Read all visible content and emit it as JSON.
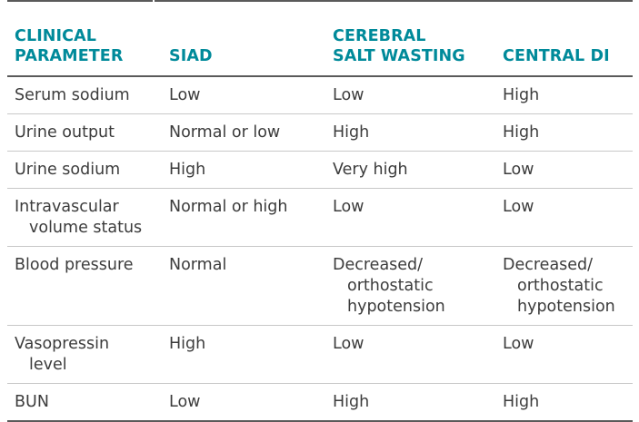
{
  "table": {
    "headers": [
      [
        "CLINICAL",
        "PARAMETER"
      ],
      [
        "SIAD"
      ],
      [
        "CEREBRAL",
        "SALT WASTING"
      ],
      [
        "CENTRAL DI"
      ]
    ],
    "rows": [
      {
        "parameter": [
          "Serum sodium"
        ],
        "siad": [
          "Low"
        ],
        "csw": [
          "Low"
        ],
        "di": [
          "High"
        ]
      },
      {
        "parameter": [
          "Urine output"
        ],
        "siad": [
          "Normal or low"
        ],
        "csw": [
          "High"
        ],
        "di": [
          "High"
        ]
      },
      {
        "parameter": [
          "Urine sodium"
        ],
        "siad": [
          "High"
        ],
        "csw": [
          "Very high"
        ],
        "di": [
          "Low"
        ]
      },
      {
        "parameter": [
          "Intravascular",
          "volume status"
        ],
        "siad": [
          "Normal or high"
        ],
        "csw": [
          "Low"
        ],
        "di": [
          "Low"
        ]
      },
      {
        "parameter": [
          "Blood pressure"
        ],
        "siad": [
          "Normal"
        ],
        "csw": [
          "Decreased/",
          "orthostatic",
          "hypotension"
        ],
        "di": [
          "Decreased/",
          "orthostatic",
          "hypotension"
        ]
      },
      {
        "parameter": [
          "Vasopressin",
          "level"
        ],
        "siad": [
          "High"
        ],
        "csw": [
          "Low"
        ],
        "di": [
          "Low"
        ]
      },
      {
        "parameter": [
          "BUN"
        ],
        "siad": [
          "Low"
        ],
        "csw": [
          "High"
        ],
        "di": [
          "High"
        ]
      }
    ]
  },
  "colors": {
    "header_text": "#008a9a",
    "body_text": "#3c3c3c",
    "rule_dark": "#5a5a5a",
    "rule_light": "#c8c8c8"
  }
}
